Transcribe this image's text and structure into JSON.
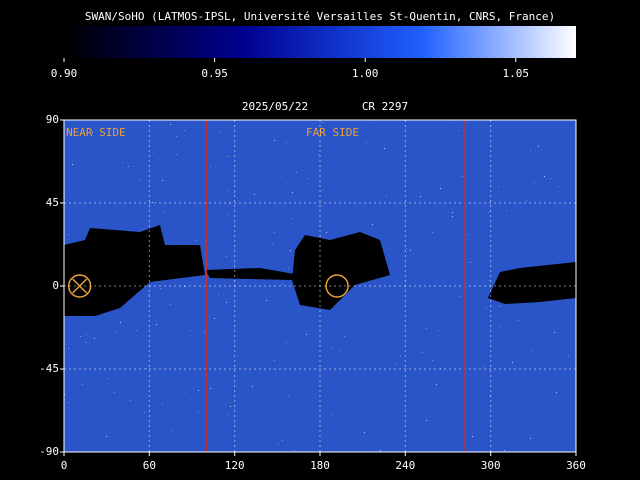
{
  "chart_data": {
    "type": "map",
    "title": "SWAN/SoHO (LATMOS-IPSL, Université Versailles St-Quentin, CNRS, France)",
    "date": "2025/05/22",
    "rotation": "CR 2297",
    "colorbar": {
      "lim": [
        0.9,
        1.07
      ],
      "ticks": [
        {
          "value": 0.9,
          "label": "0.90"
        },
        {
          "value": 0.95,
          "label": "0.95"
        },
        {
          "value": 1.0,
          "label": "1.00"
        },
        {
          "value": 1.05,
          "label": "1.05"
        }
      ]
    },
    "xlim": [
      0,
      360
    ],
    "xticks": [
      0,
      60,
      120,
      180,
      240,
      300,
      360
    ],
    "ylim": [
      -90,
      90
    ],
    "yticks": [
      90,
      45,
      0,
      -45,
      -90
    ],
    "annotations": [
      "NEAR SIDE",
      "FAR SIDE"
    ],
    "meridians": {
      "color": "#c03030",
      "values": [
        100,
        282
      ]
    },
    "markers": {
      "color": "#e8a040",
      "x": [
        11,
        192
      ],
      "y": [
        0,
        0
      ]
    },
    "grid": true
  }
}
